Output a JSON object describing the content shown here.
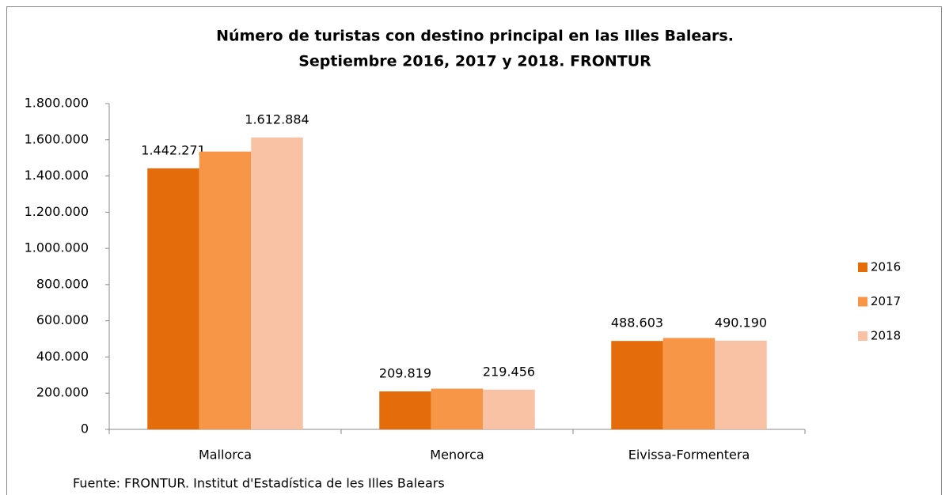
{
  "chart_data": {
    "type": "bar",
    "title": "Número de turistas con destino principal en  las Illes Balears.",
    "subtitle": "Septiembre 2016, 2017 y 2018.  FRONTUR",
    "source": "Fuente: FRONTUR. Institut d'Estadística  de les Illes  Balears",
    "categories": [
      "Mallorca",
      "Menorca",
      "Eivissa-Formentera"
    ],
    "series": [
      {
        "name": "2016",
        "color": "#e46c0a",
        "values": [
          1442271,
          209819,
          488603
        ],
        "value_labels": [
          "1.442.271",
          "209.819",
          "488.603"
        ]
      },
      {
        "name": "2017",
        "color": "#f79646",
        "values": [
          1535000,
          225000,
          505000
        ]
      },
      {
        "name": "2018",
        "color": "#f9c2a4",
        "values": [
          1612884,
          219456,
          490190
        ],
        "value_labels": [
          "1.612.884",
          "219.456",
          "490.190"
        ]
      }
    ],
    "ylim": [
      0,
      1800000
    ],
    "yticks": [
      0,
      {
        "value": 200000,
        "label": "200.000"
      },
      {
        "value": 400000,
        "label": "400.000"
      },
      {
        "value": 600000,
        "label": "600.000"
      },
      {
        "value": 800000,
        "label": "800.000"
      },
      {
        "value": 1000000,
        "label": "1.000.000"
      },
      {
        "value": 1200000,
        "label": "1.200.000"
      },
      {
        "value": 1400000,
        "label": "1.400.000"
      },
      {
        "value": 1600000,
        "label": "1.600.000"
      },
      {
        "value": 1800000,
        "label": "1.800.000"
      }
    ],
    "grid": false,
    "legend": "right"
  }
}
